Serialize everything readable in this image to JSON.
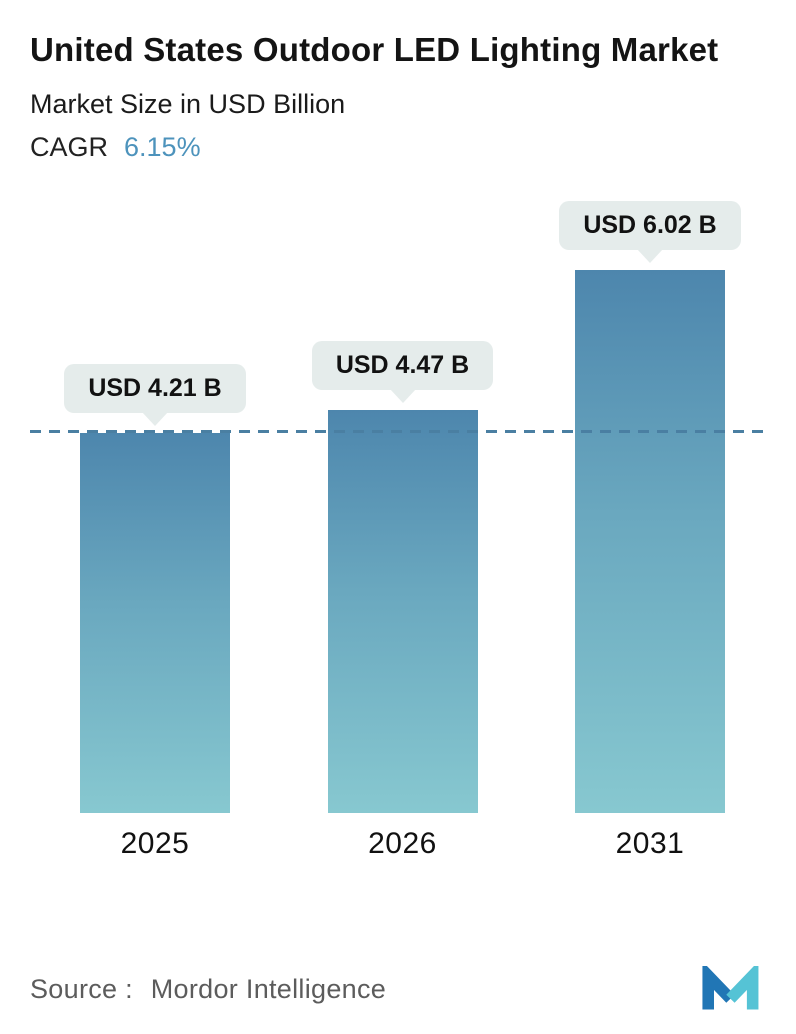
{
  "header": {
    "title": "United States Outdoor LED Lighting Market",
    "subtitle": "Market Size in USD Billion",
    "cagr_label": "CAGR",
    "cagr_value": "6.15%"
  },
  "chart_data": {
    "type": "bar",
    "title": "United States Outdoor LED Lighting Market",
    "ylabel": "Market Size in USD Billion",
    "categories": [
      "2025",
      "2026",
      "2031"
    ],
    "values": [
      4.21,
      4.47,
      6.02
    ],
    "value_labels": [
      "USD 4.21 B",
      "USD 4.47 B",
      "USD 6.02 B"
    ],
    "cagr": "6.15%",
    "ylim": [
      0,
      6.65
    ],
    "reference_value": 4.21,
    "grid": "off",
    "legend": "none",
    "bar_gradient_top": "#4d86ad",
    "bar_gradient_bottom": "#87c8d0",
    "dashed_line_color": "#4a7fa2",
    "label_pill_color": "#e5eceb"
  },
  "colors": {
    "cagr_value": "#4d93bc",
    "title_text": "#141414",
    "source_text": "#5c5c5c",
    "logo_blue": "#2176b5",
    "logo_teal": "#55c3d5"
  },
  "footer": {
    "source_label": "Source :",
    "source_value": "Mordor Intelligence"
  }
}
